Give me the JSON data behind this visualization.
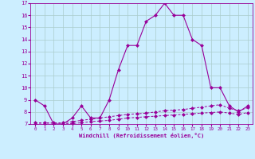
{
  "xlabel": "Windchill (Refroidissement éolien,°C)",
  "x": [
    0,
    1,
    2,
    3,
    4,
    5,
    6,
    7,
    8,
    9,
    10,
    11,
    12,
    13,
    14,
    15,
    16,
    17,
    18,
    19,
    20,
    21,
    22,
    23
  ],
  "line1": [
    9,
    8.5,
    7,
    7,
    7.5,
    8.5,
    7.5,
    7.5,
    9,
    11.5,
    13.5,
    13.5,
    15.5,
    16,
    17,
    16,
    16,
    14,
    13.5,
    10,
    10,
    8.5,
    8,
    8.5
  ],
  "line2": [
    7.1,
    7.1,
    7.1,
    7.1,
    7.2,
    7.3,
    7.4,
    7.5,
    7.6,
    7.7,
    7.8,
    7.85,
    7.9,
    8.0,
    8.1,
    8.15,
    8.2,
    8.3,
    8.4,
    8.5,
    8.6,
    8.3,
    8.1,
    8.35
  ],
  "line3": [
    7.0,
    7.0,
    7.0,
    7.0,
    7.05,
    7.1,
    7.2,
    7.25,
    7.3,
    7.4,
    7.5,
    7.55,
    7.6,
    7.65,
    7.7,
    7.75,
    7.8,
    7.85,
    7.9,
    7.95,
    8.0,
    7.9,
    7.8,
    7.95
  ],
  "line_color": "#990099",
  "bg_color": "#cceeff",
  "grid_color": "#aacccc",
  "ylim": [
    7,
    17
  ],
  "yticks": [
    7,
    8,
    9,
    10,
    11,
    12,
    13,
    14,
    15,
    16,
    17
  ],
  "xlim": [
    -0.5,
    23.5
  ],
  "xticks": [
    0,
    1,
    2,
    3,
    4,
    5,
    6,
    7,
    8,
    9,
    10,
    11,
    12,
    13,
    14,
    15,
    16,
    17,
    18,
    19,
    20,
    21,
    22,
    23
  ]
}
